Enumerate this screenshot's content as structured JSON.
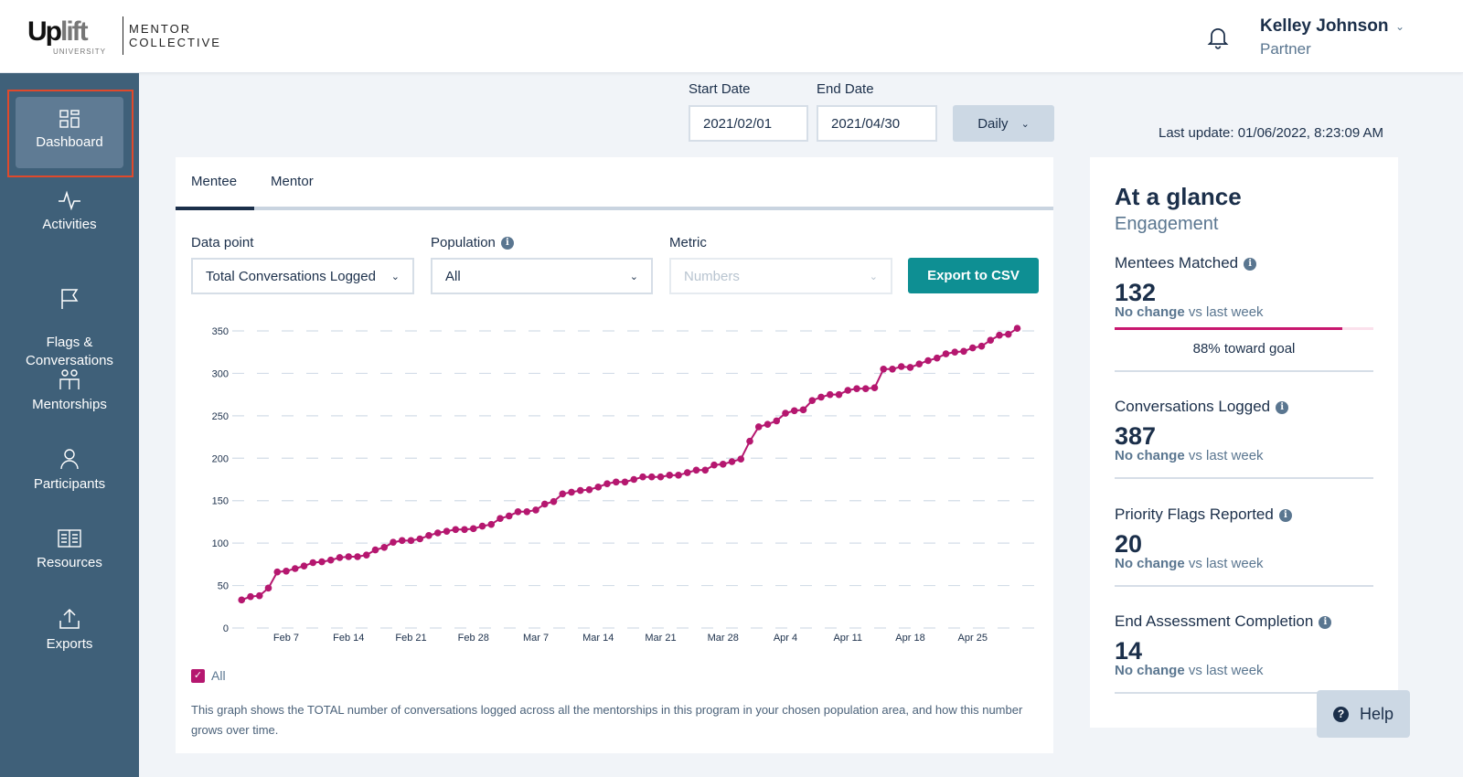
{
  "header": {
    "logo": {
      "brand_main": "Uplift",
      "brand_sub": "UNIVERSITY",
      "partner": "MENTOR COLLECTIVE"
    },
    "user": {
      "name": "Kelley Johnson",
      "role": "Partner"
    }
  },
  "sidebar": {
    "items": [
      {
        "label": "Dashboard",
        "icon": "dashboard-icon",
        "active": true
      },
      {
        "label": "Activities",
        "icon": "activity-pulse-icon"
      },
      {
        "label": "Flags &\nConversations",
        "icon": "flag-icon"
      },
      {
        "label": "Mentorships",
        "icon": "people-icon"
      },
      {
        "label": "Participants",
        "icon": "person-icon"
      },
      {
        "label": "Resources",
        "icon": "book-icon"
      },
      {
        "label": "Exports",
        "icon": "upload-icon"
      }
    ]
  },
  "filters": {
    "start_date_label": "Start Date",
    "start_date": "2021/02/01",
    "end_date_label": "End Date",
    "end_date": "2021/04/30",
    "interval": "Daily",
    "last_update": "Last update: 01/06/2022, 8:23:09 AM"
  },
  "main": {
    "tabs": [
      {
        "label": "Mentee",
        "active": true
      },
      {
        "label": "Mentor"
      }
    ],
    "data_point_label": "Data point",
    "data_point_value": "Total Conversations Logged",
    "population_label": "Population",
    "population_value": "All",
    "metric_label": "Metric",
    "metric_placeholder": "Numbers",
    "export_label": "Export to CSV",
    "legend_label": "All",
    "description": "This graph shows the TOTAL number of conversations logged across all the mentorships in this program in your chosen population area, and how this number grows over time."
  },
  "chart_data": {
    "type": "line",
    "color": "#b5176f",
    "ylim": [
      0,
      350
    ],
    "yticks": [
      0,
      50,
      100,
      150,
      200,
      250,
      300,
      350
    ],
    "xtick_labels": [
      "Feb 7",
      "Feb 14",
      "Feb 21",
      "Feb 28",
      "Mar 7",
      "Mar 14",
      "Mar 21",
      "Mar 28",
      "Apr 4",
      "Apr 11",
      "Apr 18",
      "Apr 25"
    ],
    "grid": true,
    "series": [
      {
        "name": "All",
        "x": [
          "2021-02-02",
          "2021-02-03",
          "2021-02-04",
          "2021-02-05",
          "2021-02-06",
          "2021-02-07",
          "2021-02-08",
          "2021-02-09",
          "2021-02-10",
          "2021-02-11",
          "2021-02-12",
          "2021-02-13",
          "2021-02-14",
          "2021-02-15",
          "2021-02-16",
          "2021-02-17",
          "2021-02-18",
          "2021-02-19",
          "2021-02-20",
          "2021-02-21",
          "2021-02-22",
          "2021-02-23",
          "2021-02-24",
          "2021-02-25",
          "2021-02-26",
          "2021-02-27",
          "2021-02-28",
          "2021-03-01",
          "2021-03-02",
          "2021-03-03",
          "2021-03-04",
          "2021-03-05",
          "2021-03-06",
          "2021-03-07",
          "2021-03-08",
          "2021-03-09",
          "2021-03-10",
          "2021-03-11",
          "2021-03-12",
          "2021-03-13",
          "2021-03-14",
          "2021-03-15",
          "2021-03-16",
          "2021-03-17",
          "2021-03-18",
          "2021-03-19",
          "2021-03-20",
          "2021-03-21",
          "2021-03-22",
          "2021-03-23",
          "2021-03-24",
          "2021-03-25",
          "2021-03-26",
          "2021-03-27",
          "2021-03-28",
          "2021-03-29",
          "2021-03-30",
          "2021-03-31",
          "2021-04-01",
          "2021-04-02",
          "2021-04-03",
          "2021-04-04",
          "2021-04-05",
          "2021-04-06",
          "2021-04-07",
          "2021-04-08",
          "2021-04-09",
          "2021-04-10",
          "2021-04-11",
          "2021-04-12",
          "2021-04-13",
          "2021-04-14",
          "2021-04-15",
          "2021-04-16",
          "2021-04-17",
          "2021-04-18",
          "2021-04-19",
          "2021-04-20",
          "2021-04-21",
          "2021-04-22",
          "2021-04-23",
          "2021-04-24",
          "2021-04-25",
          "2021-04-26",
          "2021-04-27",
          "2021-04-28",
          "2021-04-29",
          "2021-04-30"
        ],
        "values": [
          33,
          37,
          38,
          47,
          66,
          67,
          70,
          73,
          77,
          78,
          80,
          83,
          84,
          84,
          86,
          92,
          95,
          101,
          103,
          103,
          105,
          109,
          112,
          114,
          116,
          116,
          117,
          120,
          122,
          129,
          132,
          137,
          137,
          139,
          146,
          149,
          158,
          160,
          162,
          163,
          166,
          170,
          172,
          172,
          175,
          178,
          178,
          178,
          180,
          180,
          183,
          186,
          186,
          192,
          193,
          196,
          199,
          220,
          237,
          240,
          244,
          253,
          256,
          257,
          268,
          272,
          275,
          275,
          280,
          282,
          282,
          283,
          305,
          305,
          308,
          307,
          311,
          315,
          318,
          323,
          325,
          326,
          330,
          332,
          339,
          345,
          346,
          353
        ]
      }
    ]
  },
  "glance": {
    "title": "At a glance",
    "subtitle": "Engagement",
    "metrics": [
      {
        "title": "Mentees Matched",
        "value": "132",
        "change": "No change",
        "suffix": "vs last week",
        "goal_percent": 88,
        "goal_text": "88% toward goal"
      },
      {
        "title": "Conversations Logged",
        "value": "387",
        "change": "No change",
        "suffix": "vs last week"
      },
      {
        "title": "Priority Flags Reported",
        "value": "20",
        "change": "No change",
        "suffix": "vs last week"
      },
      {
        "title": "End Assessment Completion",
        "value": "14",
        "change": "No change",
        "suffix": "vs last week"
      }
    ]
  },
  "help_label": "Help"
}
